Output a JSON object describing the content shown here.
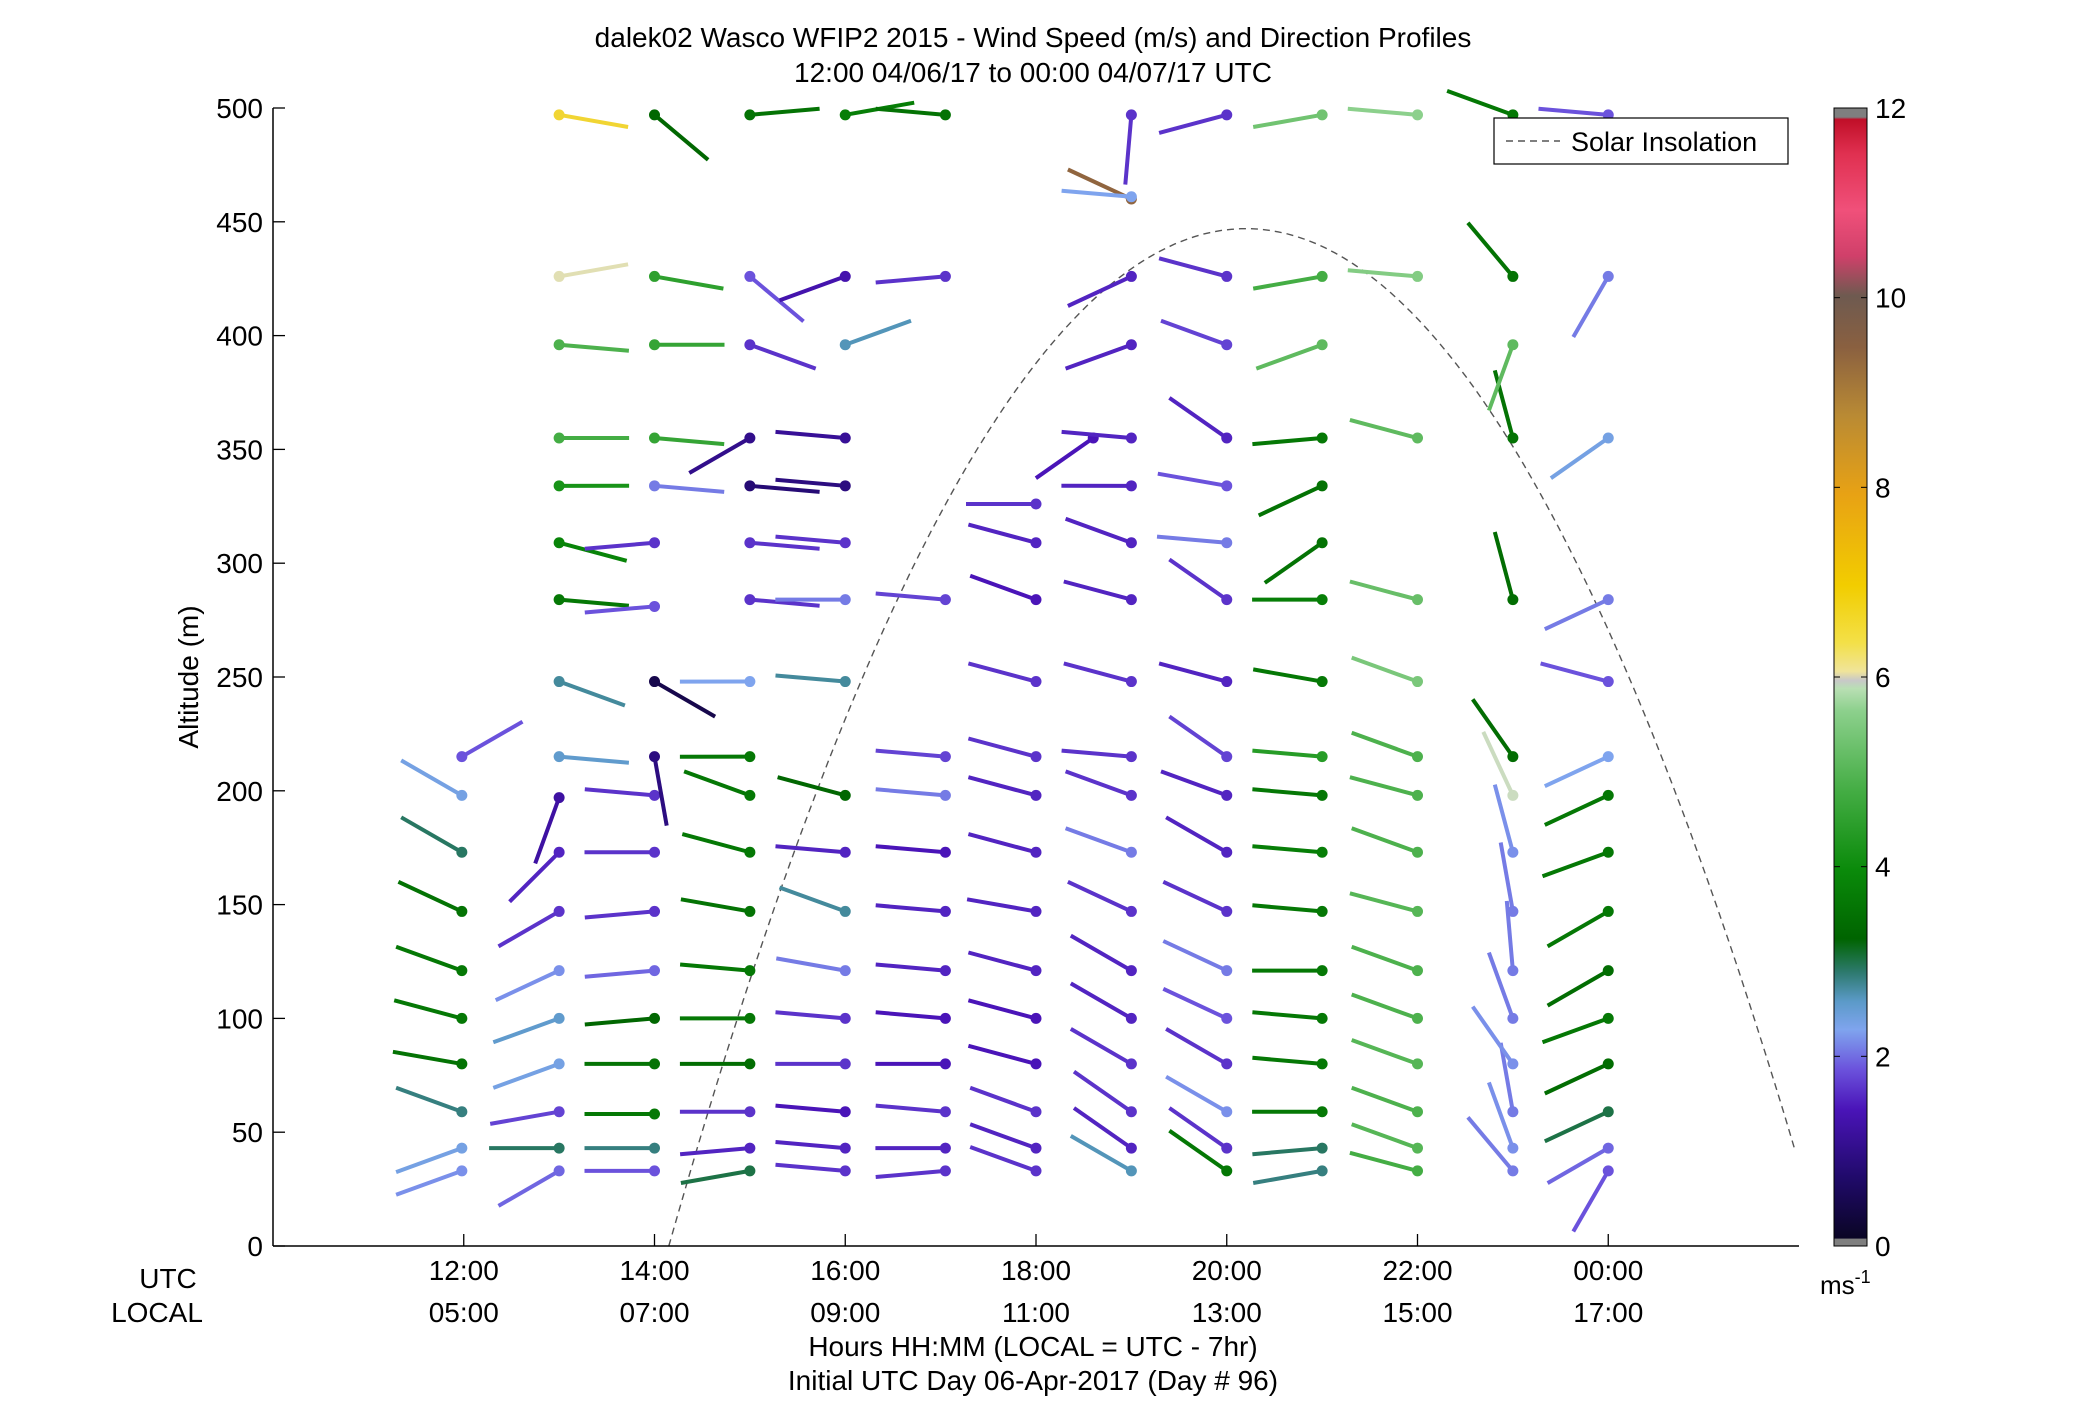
{
  "chart_data": {
    "type": "scatter",
    "title": "dalek02 Wasco WFIP2 2015 - Wind Speed (m/s) and Direction Profiles",
    "subtitle": "12:00 04/06/17 to 00:00 04/07/17  UTC",
    "ylabel": "Altitude (m)",
    "ylim": [
      0,
      500
    ],
    "yticks": [
      "0",
      "50",
      "100",
      "150",
      "200",
      "250",
      "300",
      "350",
      "400",
      "450",
      "500"
    ],
    "xlim": [
      10,
      26
    ],
    "utc_row_label": "UTC",
    "local_row_label": "LOCAL",
    "xticks_utc": [
      "12:00",
      "14:00",
      "16:00",
      "18:00",
      "20:00",
      "22:00",
      "00:00"
    ],
    "xticks_local": [
      "05:00",
      "07:00",
      "09:00",
      "11:00",
      "13:00",
      "15:00",
      "17:00"
    ],
    "xlabel_line1": "Hours HH:MM  (LOCAL = UTC - 7hr)",
    "xlabel_line2": "Initial UTC Day 06-Apr-2017 (Day # 96)",
    "colorbar": {
      "min": 0,
      "max": 12,
      "ticks": [
        "0",
        "2",
        "4",
        "6",
        "8",
        "10",
        "12"
      ],
      "unit_label": "ms",
      "unit_exponent": "-1"
    },
    "legend": {
      "position": "top-right",
      "label": "Solar Insolation"
    },
    "solar_insolation": {
      "peak_time_utc": 20.2,
      "peak_altitude_m": 447,
      "start_time_utc": 14.15,
      "end_time_utc": 25.95
    },
    "profiles": [
      {
        "time": 11.98,
        "barbs": [
          [
            33,
            2.1,
            250
          ],
          [
            43,
            2.3,
            250
          ],
          [
            59,
            2.8,
            290
          ],
          [
            80,
            3.5,
            280
          ],
          [
            100,
            3.6,
            285
          ],
          [
            121,
            3.6,
            290
          ],
          [
            147,
            3.5,
            295
          ],
          [
            173,
            2.9,
            300
          ],
          [
            198,
            2.3,
            300
          ],
          [
            215,
            1.8,
            60
          ]
        ]
      },
      {
        "time": 13.0,
        "barbs": [
          [
            33,
            1.9,
            240
          ],
          [
            43,
            2.9,
            270
          ],
          [
            59,
            1.7,
            260
          ],
          [
            80,
            2.3,
            250
          ],
          [
            100,
            2.5,
            250
          ],
          [
            121,
            2.1,
            245
          ],
          [
            147,
            1.6,
            240
          ],
          [
            173,
            1.5,
            225
          ],
          [
            197,
            1.2,
            200
          ],
          [
            215,
            2.5,
            95
          ],
          [
            248,
            2.7,
            110
          ],
          [
            284,
            3.6,
            95
          ],
          [
            309,
            3.8,
            105
          ],
          [
            334,
            4.1,
            90
          ],
          [
            355,
            4.7,
            90
          ],
          [
            396,
            4.8,
            95
          ],
          [
            426,
            6.2,
            80
          ],
          [
            497,
            6.8,
            100
          ]
        ]
      },
      {
        "time": 14.0,
        "barbs": [
          [
            33,
            1.8,
            270
          ],
          [
            43,
            2.8,
            270
          ],
          [
            58,
            3.6,
            270
          ],
          [
            80,
            3.5,
            270
          ],
          [
            100,
            3.3,
            265
          ],
          [
            121,
            1.9,
            265
          ],
          [
            147,
            1.6,
            265
          ],
          [
            173,
            1.6,
            270
          ],
          [
            198,
            1.6,
            275
          ],
          [
            215,
            0.9,
            170
          ],
          [
            248,
            0.4,
            120
          ],
          [
            281,
            1.8,
            265
          ],
          [
            309,
            1.6,
            265
          ],
          [
            334,
            2.0,
            95
          ],
          [
            355,
            4.5,
            95
          ],
          [
            396,
            4.5,
            90
          ],
          [
            426,
            4.4,
            100
          ],
          [
            497,
            3.3,
            130
          ]
        ]
      },
      {
        "time": 15.0,
        "barbs": [
          [
            33,
            3.0,
            260
          ],
          [
            43,
            1.5,
            265
          ],
          [
            59,
            1.6,
            270
          ],
          [
            80,
            3.4,
            270
          ],
          [
            100,
            3.6,
            270
          ],
          [
            121,
            3.6,
            275
          ],
          [
            147,
            3.5,
            280
          ],
          [
            173,
            3.6,
            285
          ],
          [
            198,
            3.6,
            290
          ],
          [
            215,
            3.6,
            270
          ],
          [
            248,
            2.2,
            270
          ],
          [
            284,
            1.6,
            95
          ],
          [
            309,
            1.6,
            95
          ],
          [
            334,
            0.8,
            95
          ],
          [
            355,
            1.0,
            240
          ],
          [
            396,
            1.6,
            110
          ],
          [
            426,
            1.8,
            130
          ],
          [
            497,
            3.5,
            85
          ]
        ]
      },
      {
        "time": 16.0,
        "barbs": [
          [
            33,
            1.6,
            275
          ],
          [
            43,
            1.5,
            275
          ],
          [
            59,
            1.4,
            275
          ],
          [
            80,
            1.6,
            270
          ],
          [
            100,
            1.6,
            275
          ],
          [
            121,
            2.0,
            280
          ],
          [
            147,
            2.7,
            290
          ],
          [
            173,
            1.5,
            275
          ],
          [
            198,
            3.3,
            285
          ],
          [
            248,
            2.7,
            275
          ],
          [
            284,
            2.0,
            270
          ],
          [
            309,
            1.6,
            275
          ],
          [
            334,
            0.9,
            275
          ],
          [
            355,
            1.1,
            275
          ],
          [
            396,
            2.6,
            70
          ],
          [
            426,
            1.3,
            250
          ],
          [
            497,
            3.7,
            80
          ]
        ]
      },
      {
        "time": 17.05,
        "barbs": [
          [
            33,
            1.6,
            265
          ],
          [
            43,
            1.5,
            270
          ],
          [
            59,
            1.6,
            275
          ],
          [
            80,
            1.4,
            270
          ],
          [
            100,
            1.4,
            275
          ],
          [
            121,
            1.5,
            275
          ],
          [
            147,
            1.5,
            275
          ],
          [
            173,
            1.4,
            275
          ],
          [
            198,
            2.0,
            275
          ],
          [
            215,
            1.7,
            275
          ],
          [
            284,
            1.7,
            275
          ],
          [
            426,
            1.6,
            265
          ],
          [
            497,
            3.5,
            275
          ]
        ]
      },
      {
        "time": 18.0,
        "barbs": [
          [
            33,
            1.6,
            290
          ],
          [
            43,
            1.5,
            290
          ],
          [
            59,
            1.6,
            290
          ],
          [
            80,
            1.4,
            285
          ],
          [
            100,
            1.4,
            285
          ],
          [
            121,
            1.5,
            285
          ],
          [
            147,
            1.5,
            280
          ],
          [
            173,
            1.5,
            285
          ],
          [
            198,
            1.5,
            285
          ],
          [
            215,
            1.6,
            285
          ],
          [
            248,
            1.6,
            285
          ],
          [
            284,
            1.4,
            290
          ],
          [
            309,
            1.5,
            285
          ],
          [
            326,
            1.6,
            270
          ]
        ]
      },
      {
        "time": 18.6,
        "barbs": [
          [
            355,
            1.4,
            235
          ]
        ]
      },
      {
        "time": 19.0,
        "barbs": [
          [
            33,
            2.6,
            300
          ],
          [
            43,
            1.5,
            305
          ],
          [
            59,
            1.6,
            305
          ],
          [
            80,
            1.6,
            300
          ],
          [
            100,
            1.5,
            300
          ],
          [
            121,
            1.5,
            300
          ],
          [
            147,
            1.6,
            295
          ],
          [
            173,
            2.0,
            290
          ],
          [
            198,
            1.6,
            290
          ],
          [
            215,
            1.6,
            275
          ],
          [
            248,
            1.6,
            285
          ],
          [
            284,
            1.5,
            285
          ],
          [
            309,
            1.5,
            290
          ],
          [
            334,
            1.5,
            270
          ],
          [
            355,
            1.5,
            275
          ],
          [
            396,
            1.5,
            250
          ],
          [
            426,
            1.5,
            245
          ],
          [
            460,
            9.5,
            295
          ],
          [
            461,
            2.2,
            275
          ],
          [
            497,
            1.6,
            185
          ]
        ]
      },
      {
        "time": 20.0,
        "barbs": [
          [
            33,
            3.6,
            305
          ],
          [
            43,
            1.6,
            305
          ],
          [
            59,
            2.1,
            300
          ],
          [
            80,
            1.6,
            300
          ],
          [
            100,
            1.8,
            295
          ],
          [
            121,
            2.0,
            295
          ],
          [
            147,
            1.6,
            295
          ],
          [
            173,
            1.5,
            300
          ],
          [
            198,
            1.5,
            290
          ],
          [
            215,
            1.7,
            305
          ],
          [
            248,
            1.5,
            285
          ],
          [
            284,
            1.6,
            305
          ],
          [
            309,
            2.0,
            275
          ],
          [
            334,
            1.8,
            280
          ],
          [
            355,
            1.5,
            305
          ],
          [
            396,
            1.7,
            290
          ],
          [
            426,
            1.6,
            285
          ],
          [
            497,
            1.6,
            255
          ]
        ]
      },
      {
        "time": 21.0,
        "barbs": [
          [
            33,
            2.8,
            260
          ],
          [
            43,
            2.9,
            265
          ],
          [
            59,
            3.6,
            270
          ],
          [
            80,
            3.6,
            275
          ],
          [
            100,
            3.6,
            275
          ],
          [
            121,
            3.6,
            270
          ],
          [
            147,
            3.6,
            275
          ],
          [
            173,
            3.7,
            275
          ],
          [
            198,
            3.6,
            275
          ],
          [
            215,
            4.3,
            275
          ],
          [
            248,
            3.6,
            280
          ],
          [
            284,
            3.7,
            270
          ],
          [
            309,
            3.5,
            235
          ],
          [
            334,
            3.5,
            245
          ],
          [
            355,
            3.6,
            265
          ],
          [
            396,
            5.0,
            250
          ],
          [
            426,
            4.7,
            260
          ],
          [
            497,
            5.2,
            260
          ]
        ]
      },
      {
        "time": 22.0,
        "barbs": [
          [
            33,
            4.7,
            285
          ],
          [
            43,
            4.9,
            290
          ],
          [
            59,
            4.8,
            290
          ],
          [
            80,
            4.9,
            290
          ],
          [
            100,
            4.8,
            290
          ],
          [
            121,
            4.8,
            290
          ],
          [
            147,
            4.9,
            285
          ],
          [
            173,
            4.8,
            290
          ],
          [
            198,
            4.8,
            285
          ],
          [
            215,
            4.8,
            290
          ],
          [
            248,
            5.3,
            290
          ],
          [
            284,
            5.1,
            285
          ],
          [
            355,
            5.0,
            285
          ],
          [
            426,
            5.4,
            275
          ],
          [
            497,
            5.5,
            275
          ]
        ]
      },
      {
        "time": 23.0,
        "barbs": [
          [
            33,
            2.0,
            320
          ],
          [
            43,
            2.1,
            340
          ],
          [
            59,
            2.0,
            350
          ],
          [
            80,
            2.1,
            325
          ],
          [
            100,
            2.0,
            340
          ],
          [
            121,
            2.0,
            355
          ],
          [
            147,
            2.0,
            350
          ],
          [
            173,
            2.1,
            345
          ],
          [
            198,
            6.0,
            335
          ],
          [
            215,
            3.4,
            325
          ],
          [
            284,
            3.4,
            345
          ],
          [
            355,
            3.5,
            345
          ],
          [
            396,
            5.0,
            200
          ],
          [
            426,
            3.5,
            320
          ],
          [
            497,
            3.6,
            290
          ]
        ]
      },
      {
        "time": 24.0,
        "barbs": [
          [
            33,
            1.8,
            210
          ],
          [
            43,
            1.9,
            240
          ],
          [
            59,
            3.0,
            245
          ],
          [
            80,
            3.4,
            245
          ],
          [
            100,
            3.6,
            250
          ],
          [
            121,
            3.4,
            240
          ],
          [
            147,
            3.6,
            240
          ],
          [
            173,
            3.6,
            250
          ],
          [
            198,
            3.6,
            245
          ],
          [
            215,
            2.2,
            245
          ],
          [
            248,
            1.8,
            285
          ],
          [
            284,
            2.0,
            245
          ],
          [
            355,
            2.3,
            235
          ],
          [
            426,
            2.0,
            210
          ],
          [
            497,
            1.8,
            275
          ]
        ]
      }
    ]
  }
}
